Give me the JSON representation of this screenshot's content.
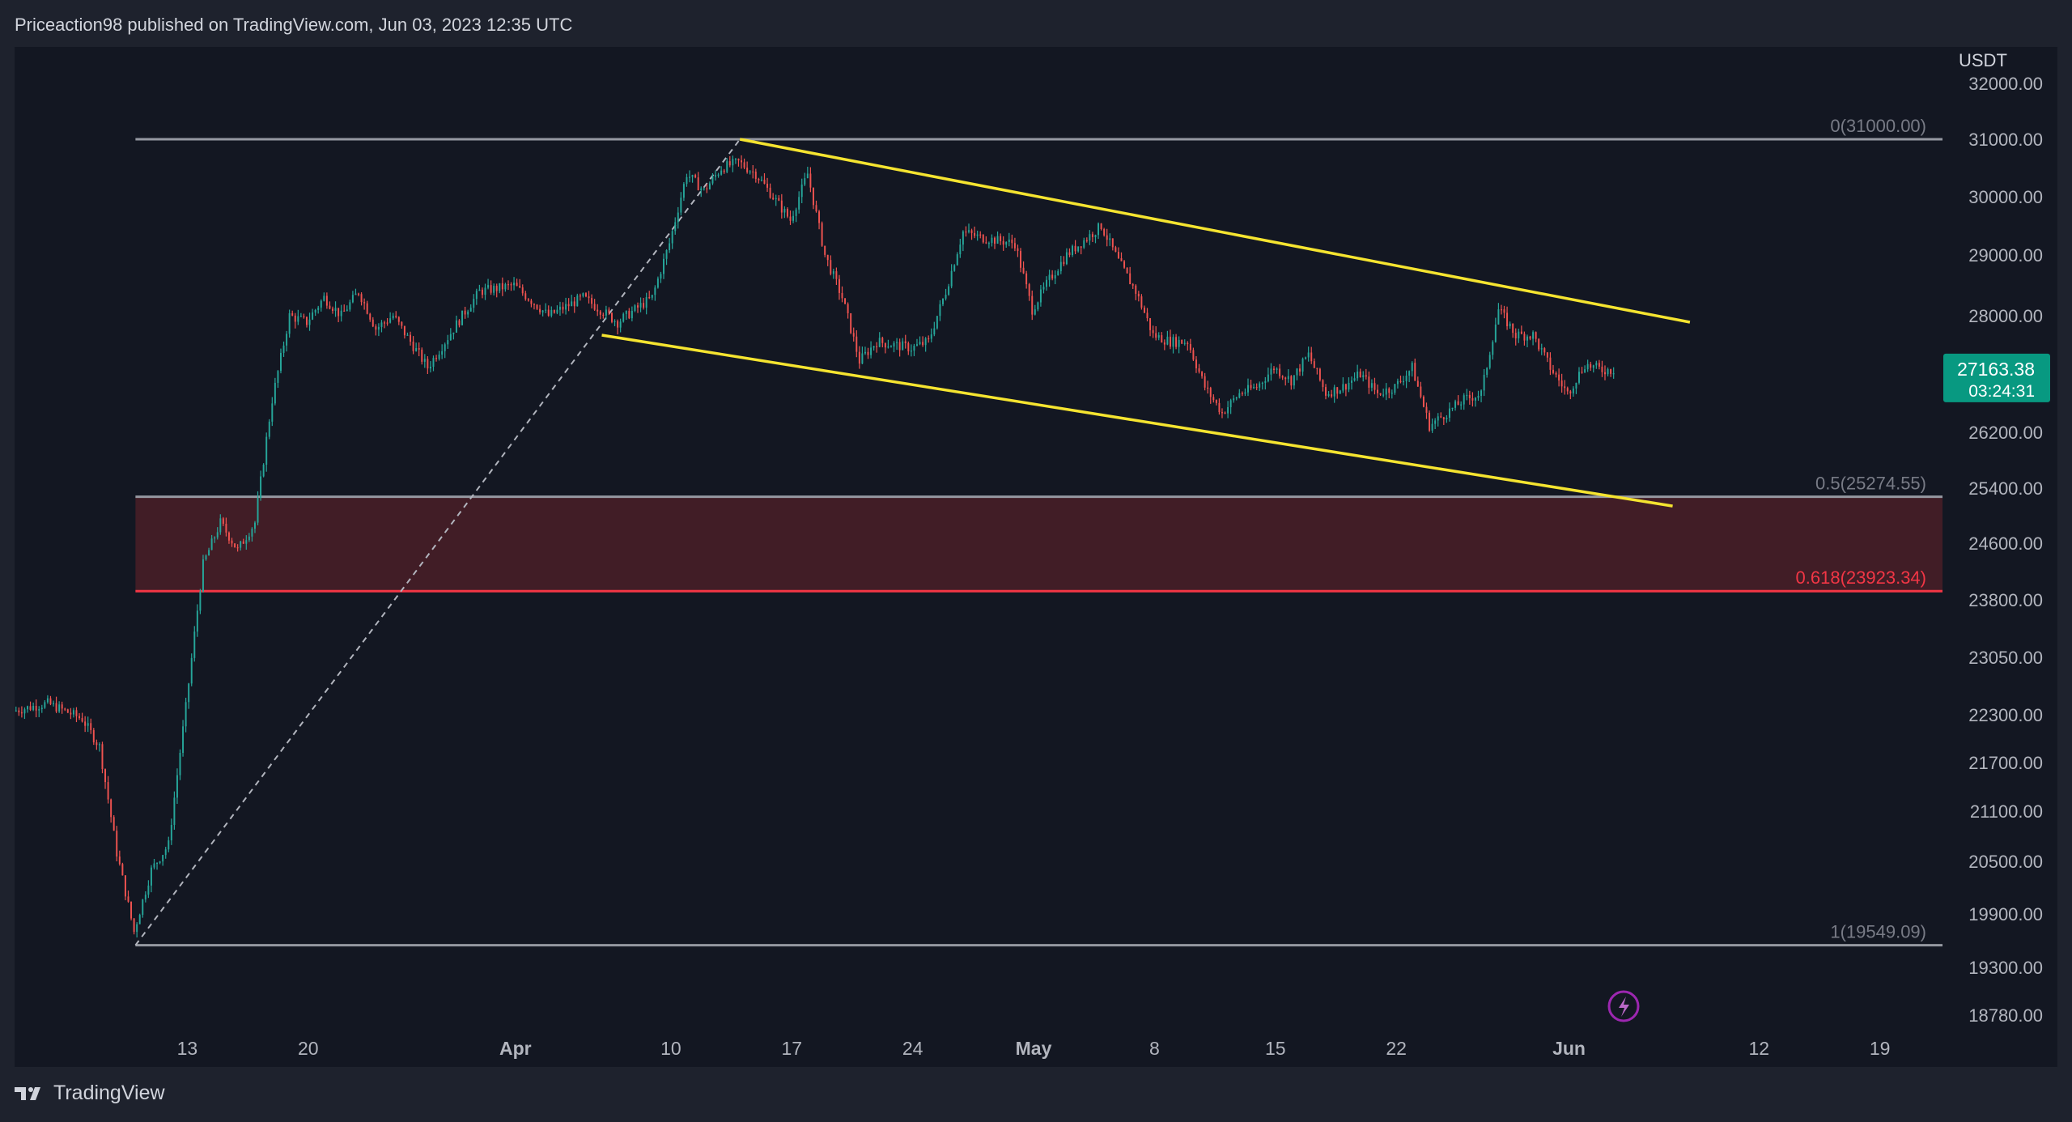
{
  "header": {
    "published_text": "Priceaction98 published on TradingView.com, Jun 03, 2023 12:35 UTC"
  },
  "footer": {
    "brand": "TradingView"
  },
  "colors": {
    "background": "#131722",
    "frame": "#1e222d",
    "up": "#26a69a",
    "down": "#ef5350",
    "channel": "#f5e430",
    "fib_line": "#9598a1",
    "fib_0618": "#f23645",
    "zone_fill": "#4a1f27",
    "price_tag": "#089981"
  },
  "chart_data": {
    "type": "candlestick",
    "symbol_currency": "USDT",
    "x_axis": {
      "tick_labels": [
        "13",
        "20",
        "Apr",
        "10",
        "17",
        "24",
        "May",
        "8",
        "15",
        "22",
        "Jun",
        "12",
        "19"
      ],
      "tick_dates": [
        "2023-03-13",
        "2023-03-20",
        "2023-04-01",
        "2023-04-10",
        "2023-04-17",
        "2023-04-24",
        "2023-05-01",
        "2023-05-08",
        "2023-05-15",
        "2023-05-22",
        "2023-06-01",
        "2023-06-12",
        "2023-06-19"
      ],
      "range": [
        "2023-03-03",
        "2023-06-23"
      ]
    },
    "y_axis": {
      "tick_labels": [
        "32000.00",
        "31000.00",
        "30000.00",
        "29000.00",
        "28000.00",
        "26200.00",
        "25400.00",
        "24600.00",
        "23800.00",
        "23050.00",
        "22300.00",
        "21700.00",
        "21100.00",
        "20500.00",
        "19900.00",
        "19300.00",
        "18780.00"
      ]
    },
    "last_price": {
      "value": "27163.38",
      "countdown": "03:24:31"
    },
    "fibonacci": [
      {
        "label": "0(31000.00)",
        "level": 0,
        "price": 31000.0
      },
      {
        "label": "0.5(25274.55)",
        "level": 0.5,
        "price": 25274.55
      },
      {
        "label": "0.618(23923.34)",
        "level": 0.618,
        "price": 23923.34
      },
      {
        "label": "1(19549.09)",
        "level": 1,
        "price": 19549.09
      }
    ],
    "fib_diagonal": {
      "from": {
        "date": "2023-03-10",
        "price": 19549.09
      },
      "to": {
        "date": "2023-04-14",
        "price": 31000.0
      }
    },
    "channel": {
      "upper": {
        "from": {
          "date": "2023-04-14",
          "price": 31000
        },
        "to": {
          "date": "2023-06-08",
          "price": 27900
        }
      },
      "lower": {
        "from": {
          "date": "2023-04-06",
          "price": 27700
        },
        "to": {
          "date": "2023-06-07",
          "price": 25140
        }
      }
    },
    "price_path": [
      {
        "date": "2023-03-03",
        "price": 22350
      },
      {
        "date": "2023-03-05",
        "price": 22450
      },
      {
        "date": "2023-03-07",
        "price": 22250
      },
      {
        "date": "2023-03-08",
        "price": 21900
      },
      {
        "date": "2023-03-09",
        "price": 20600
      },
      {
        "date": "2023-03-10",
        "price": 19700
      },
      {
        "date": "2023-03-11",
        "price": 20400
      },
      {
        "date": "2023-03-12",
        "price": 20700
      },
      {
        "date": "2023-03-13",
        "price": 22400
      },
      {
        "date": "2023-03-14",
        "price": 24300
      },
      {
        "date": "2023-03-15",
        "price": 24900
      },
      {
        "date": "2023-03-16",
        "price": 24500
      },
      {
        "date": "2023-03-17",
        "price": 24900
      },
      {
        "date": "2023-03-18",
        "price": 26700
      },
      {
        "date": "2023-03-19",
        "price": 28000
      },
      {
        "date": "2023-03-20",
        "price": 27900
      },
      {
        "date": "2023-03-21",
        "price": 28300
      },
      {
        "date": "2023-03-22",
        "price": 28000
      },
      {
        "date": "2023-03-23",
        "price": 28400
      },
      {
        "date": "2023-03-24",
        "price": 27800
      },
      {
        "date": "2023-03-25",
        "price": 28000
      },
      {
        "date": "2023-03-26",
        "price": 27600
      },
      {
        "date": "2023-03-27",
        "price": 27200
      },
      {
        "date": "2023-03-28",
        "price": 27600
      },
      {
        "date": "2023-03-30",
        "price": 28400
      },
      {
        "date": "2023-04-01",
        "price": 28500
      },
      {
        "date": "2023-04-03",
        "price": 28000
      },
      {
        "date": "2023-04-05",
        "price": 28300
      },
      {
        "date": "2023-04-07",
        "price": 27900
      },
      {
        "date": "2023-04-09",
        "price": 28300
      },
      {
        "date": "2023-04-10",
        "price": 29200
      },
      {
        "date": "2023-04-11",
        "price": 30400
      },
      {
        "date": "2023-04-12",
        "price": 30100
      },
      {
        "date": "2023-04-13",
        "price": 30500
      },
      {
        "date": "2023-04-14",
        "price": 30600
      },
      {
        "date": "2023-04-15",
        "price": 30400
      },
      {
        "date": "2023-04-17",
        "price": 29600
      },
      {
        "date": "2023-04-18",
        "price": 30400
      },
      {
        "date": "2023-04-19",
        "price": 29000
      },
      {
        "date": "2023-04-20",
        "price": 28300
      },
      {
        "date": "2023-04-21",
        "price": 27300
      },
      {
        "date": "2023-04-22",
        "price": 27600
      },
      {
        "date": "2023-04-24",
        "price": 27500
      },
      {
        "date": "2023-04-25",
        "price": 27600
      },
      {
        "date": "2023-04-26",
        "price": 28400
      },
      {
        "date": "2023-04-27",
        "price": 29400
      },
      {
        "date": "2023-04-28",
        "price": 29300
      },
      {
        "date": "2023-04-30",
        "price": 29200
      },
      {
        "date": "2023-05-01",
        "price": 28100
      },
      {
        "date": "2023-05-02",
        "price": 28600
      },
      {
        "date": "2023-05-03",
        "price": 29000
      },
      {
        "date": "2023-05-05",
        "price": 29500
      },
      {
        "date": "2023-05-06",
        "price": 28900
      },
      {
        "date": "2023-05-07",
        "price": 28400
      },
      {
        "date": "2023-05-08",
        "price": 27700
      },
      {
        "date": "2023-05-09",
        "price": 27600
      },
      {
        "date": "2023-05-10",
        "price": 27600
      },
      {
        "date": "2023-05-11",
        "price": 26900
      },
      {
        "date": "2023-05-12",
        "price": 26500
      },
      {
        "date": "2023-05-13",
        "price": 26800
      },
      {
        "date": "2023-05-14",
        "price": 26900
      },
      {
        "date": "2023-05-15",
        "price": 27200
      },
      {
        "date": "2023-05-16",
        "price": 27000
      },
      {
        "date": "2023-05-17",
        "price": 27400
      },
      {
        "date": "2023-05-18",
        "price": 26800
      },
      {
        "date": "2023-05-19",
        "price": 26900
      },
      {
        "date": "2023-05-20",
        "price": 27100
      },
      {
        "date": "2023-05-21",
        "price": 26800
      },
      {
        "date": "2023-05-22",
        "price": 26900
      },
      {
        "date": "2023-05-23",
        "price": 27200
      },
      {
        "date": "2023-05-24",
        "price": 26300
      },
      {
        "date": "2023-05-25",
        "price": 26500
      },
      {
        "date": "2023-05-26",
        "price": 26700
      },
      {
        "date": "2023-05-27",
        "price": 26800
      },
      {
        "date": "2023-05-28",
        "price": 28100
      },
      {
        "date": "2023-05-29",
        "price": 27700
      },
      {
        "date": "2023-05-30",
        "price": 27700
      },
      {
        "date": "2023-05-31",
        "price": 27200
      },
      {
        "date": "2023-06-01",
        "price": 26800
      },
      {
        "date": "2023-06-02",
        "price": 27250
      },
      {
        "date": "2023-06-03",
        "price": 27163
      }
    ]
  }
}
